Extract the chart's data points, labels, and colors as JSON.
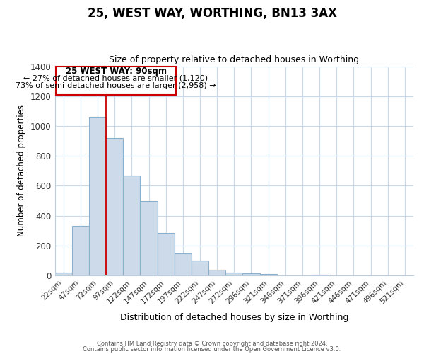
{
  "title": "25, WEST WAY, WORTHING, BN13 3AX",
  "subtitle": "Size of property relative to detached houses in Worthing",
  "xlabel": "Distribution of detached houses by size in Worthing",
  "ylabel": "Number of detached properties",
  "bar_labels": [
    "22sqm",
    "47sqm",
    "72sqm",
    "97sqm",
    "122sqm",
    "147sqm",
    "172sqm",
    "197sqm",
    "222sqm",
    "247sqm",
    "272sqm",
    "296sqm",
    "321sqm",
    "346sqm",
    "371sqm",
    "396sqm",
    "421sqm",
    "446sqm",
    "471sqm",
    "496sqm",
    "521sqm"
  ],
  "bar_values": [
    20,
    330,
    1060,
    920,
    670,
    500,
    285,
    148,
    100,
    40,
    20,
    15,
    8,
    0,
    0,
    5,
    0,
    0,
    0,
    0,
    0
  ],
  "bar_color": "#ccdaea",
  "bar_edge_color": "#8ab0cc",
  "vline_x": 2.5,
  "vline_color": "#cc0000",
  "annotation_text_line1": "25 WEST WAY: 90sqm",
  "annotation_text_line2": "← 27% of detached houses are smaller (1,120)",
  "annotation_text_line3": "73% of semi-detached houses are larger (2,958) →",
  "ylim": [
    0,
    1400
  ],
  "yticks": [
    0,
    200,
    400,
    600,
    800,
    1000,
    1200,
    1400
  ],
  "footer_line1": "Contains HM Land Registry data © Crown copyright and database right 2024.",
  "footer_line2": "Contains public sector information licensed under the Open Government Licence v3.0.",
  "bg_color": "#ffffff",
  "grid_color": "#c8d8e8",
  "annotation_box_color": "#ffffff",
  "annotation_box_edge": "#cc0000"
}
